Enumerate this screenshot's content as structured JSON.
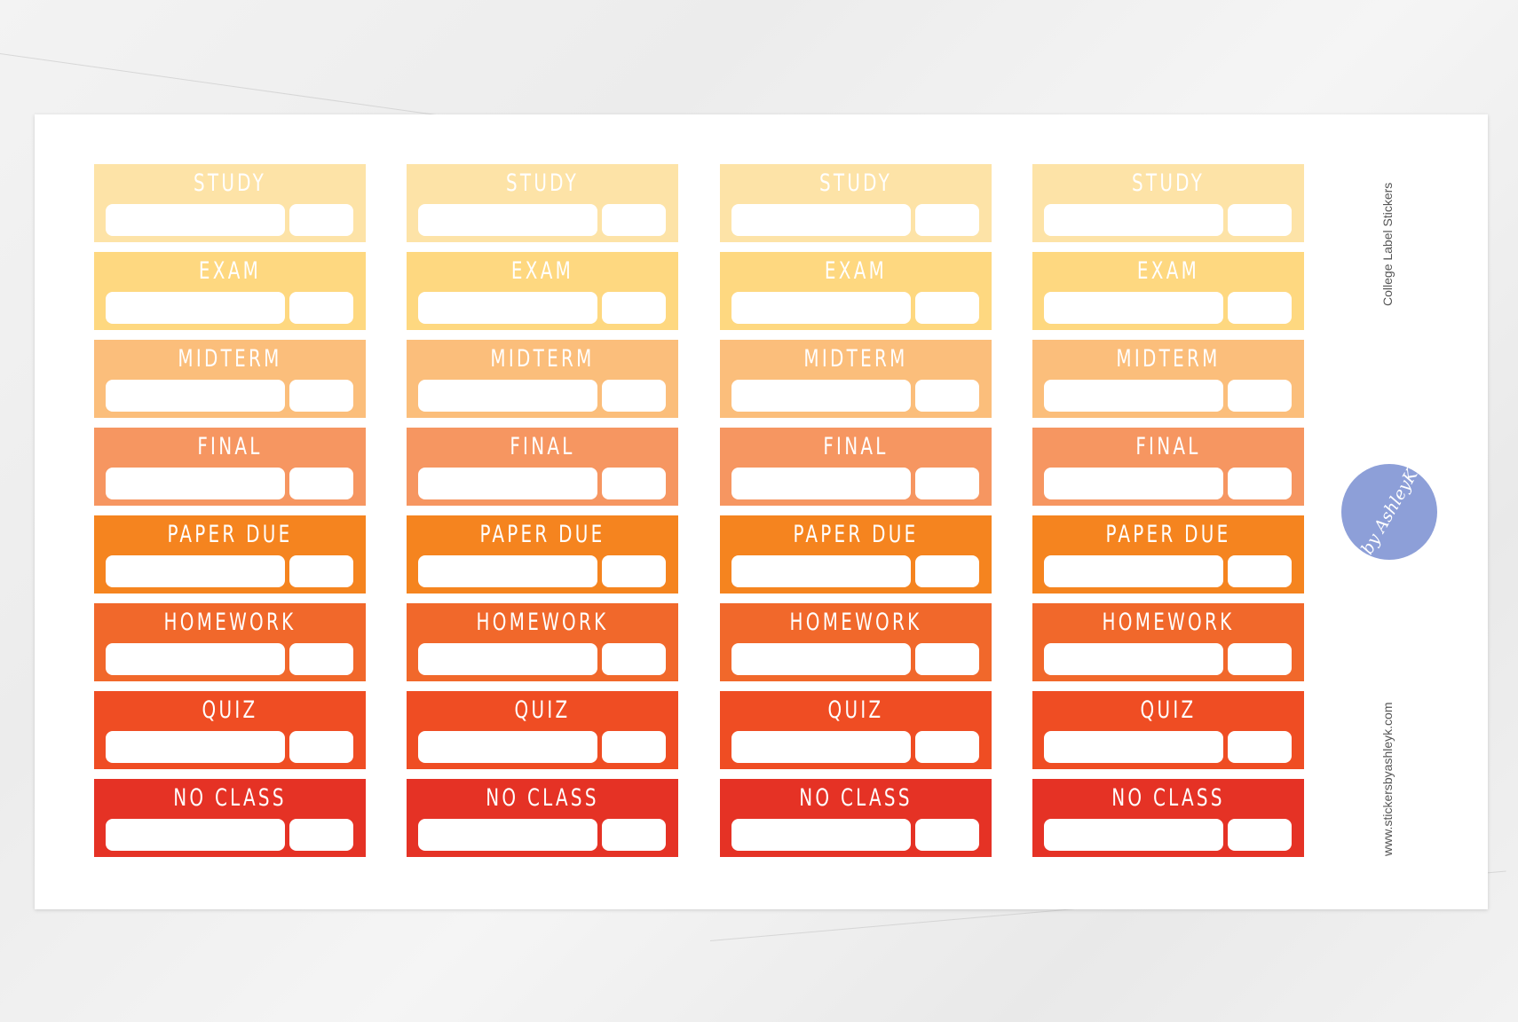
{
  "sheet": {
    "title": "College Label Stickers",
    "website": "www.stickersbyashleyk.com",
    "logo_text": "by AshleyK"
  },
  "columns": 4,
  "stickers": [
    {
      "label": "STUDY",
      "color": "#FDE3A7"
    },
    {
      "label": "EXAM",
      "color": "#FED880"
    },
    {
      "label": "MIDTERM",
      "color": "#FBBE7B"
    },
    {
      "label": "FINAL",
      "color": "#F69661"
    },
    {
      "label": "PAPER DUE",
      "color": "#F5841F"
    },
    {
      "label": "HOMEWORK",
      "color": "#F1682B"
    },
    {
      "label": "QUIZ",
      "color": "#EF4D23"
    },
    {
      "label": "NO CLASS",
      "color": "#E53225"
    }
  ],
  "logo_color": "#8D9FD8"
}
